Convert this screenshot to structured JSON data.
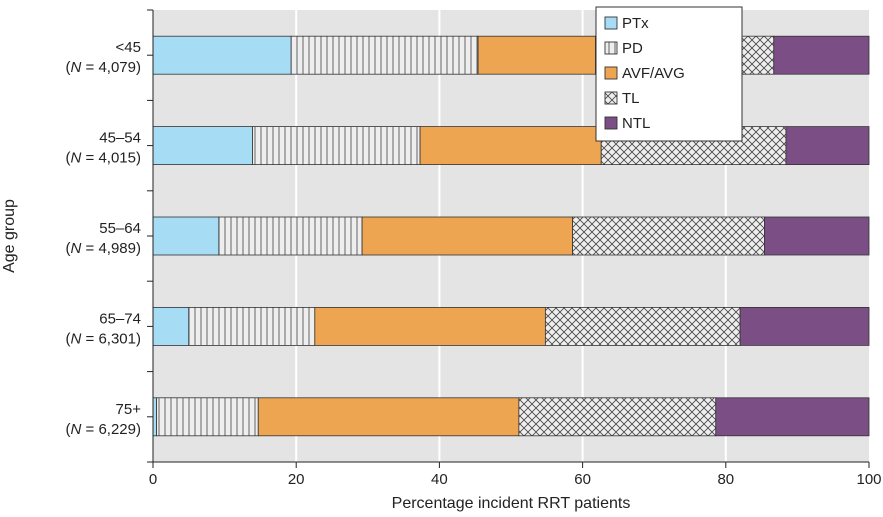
{
  "chart_data": {
    "type": "bar",
    "orientation": "horizontal",
    "stacked": true,
    "categories": [
      {
        "label": "<45",
        "n_prefix": "(",
        "n_italic": "N",
        "n_suffix": " = 4,079)"
      },
      {
        "label": "45–54",
        "n_prefix": "(",
        "n_italic": "N",
        "n_suffix": " = 4,015)"
      },
      {
        "label": "55–64",
        "n_prefix": "(",
        "n_italic": "N",
        "n_suffix": " = 4,989)"
      },
      {
        "label": "65–74",
        "n_prefix": "(",
        "n_italic": "N",
        "n_suffix": " = 6,301)"
      },
      {
        "label": "75+",
        "n_prefix": "(",
        "n_italic": "N",
        "n_suffix": " = 6,229)"
      }
    ],
    "series": [
      {
        "name": "PTx",
        "color": "#a6dcf4",
        "pattern": "solid",
        "values": [
          19.3,
          13.9,
          9.2,
          5.0,
          0.5
        ]
      },
      {
        "name": "PD",
        "color": "#eeeeee",
        "pattern": "vertical-lines",
        "values": [
          26.1,
          23.4,
          20.0,
          17.6,
          14.2
        ]
      },
      {
        "name": "AVF/AVG",
        "color": "#eea552",
        "pattern": "solid",
        "values": [
          16.4,
          25.3,
          29.4,
          32.2,
          36.4
        ]
      },
      {
        "name": "TL",
        "color": "#eeeeee",
        "pattern": "crosshatch",
        "values": [
          24.9,
          25.8,
          26.8,
          27.2,
          27.5
        ]
      },
      {
        "name": "NTL",
        "color": "#7b4f86",
        "pattern": "solid",
        "values": [
          13.3,
          11.6,
          14.6,
          18.0,
          21.4
        ]
      }
    ],
    "xlabel": "Percentage incident RRT patients",
    "ylabel": "Age group",
    "xlim": [
      0,
      100
    ],
    "xticks": [
      0,
      20,
      40,
      60,
      80,
      100
    ],
    "grid": true,
    "legend_position": "top-right"
  }
}
